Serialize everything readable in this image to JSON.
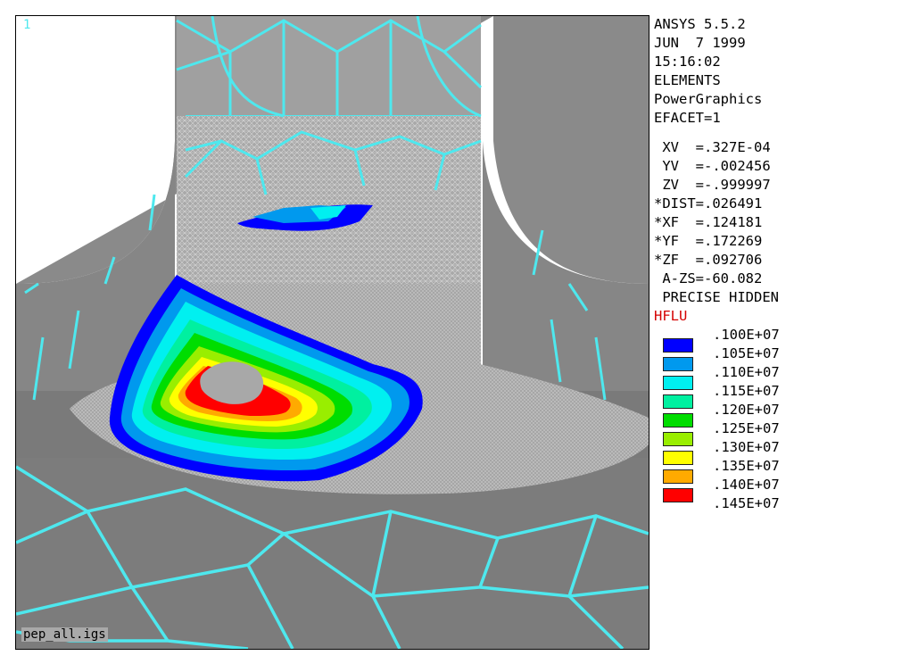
{
  "viewport": {
    "window_number": "1",
    "file_label": "pep_all.igs"
  },
  "info": {
    "lines": [
      "ANSYS 5.5.2",
      "JUN  7 1999",
      "15:16:02",
      "ELEMENTS",
      "PowerGraphics",
      "EFACET=1"
    ],
    "view_lines": [
      " XV  =.327E-04",
      " YV  =-.002456",
      " ZV  =-.999997",
      "*DIST=.026491",
      "*XF  =.124181",
      "*YF  =.172269",
      "*ZF  =.092706",
      " A-ZS=-60.082",
      " PRECISE HIDDEN"
    ],
    "result_label": "HFLU"
  },
  "legend": [
    {
      "value": ".100E+07",
      "color": "#0000ff"
    },
    {
      "value": ".105E+07",
      "color": "#0099ee"
    },
    {
      "value": ".110E+07",
      "color": "#00f0f0"
    },
    {
      "value": ".115E+07",
      "color": "#00f0a0"
    },
    {
      "value": ".120E+07",
      "color": "#00dd00"
    },
    {
      "value": ".125E+07",
      "color": "#99ee00"
    },
    {
      "value": ".130E+07",
      "color": "#ffff00"
    },
    {
      "value": ".135E+07",
      "color": "#ffaa00"
    },
    {
      "value": ".140E+07",
      "color": "#ff0000"
    },
    {
      "value": ".145E+07",
      "color": ""
    }
  ]
}
